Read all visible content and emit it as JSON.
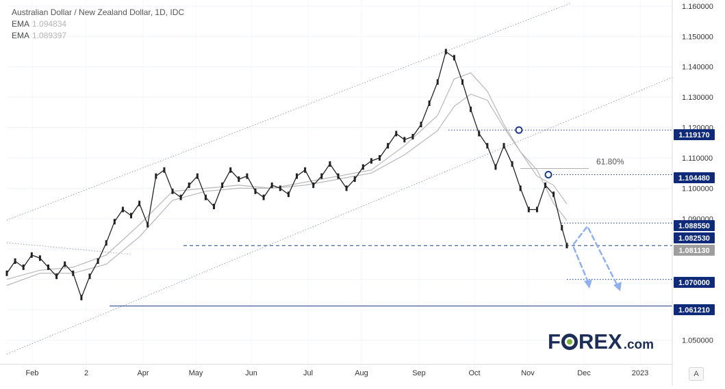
{
  "legend": {
    "title": "Australian Dollar / New Zealand Dollar, 1D, IDC",
    "ema1_label": "EMA",
    "ema1_value": "1.094834",
    "ema2_label": "EMA",
    "ema2_value": "1.089397"
  },
  "logo": {
    "text_left": "F",
    "text_right": "REX",
    "suffix": ".com"
  },
  "scale_button": "A",
  "colors": {
    "price_line": "#222222",
    "ema": "#b8b8b8",
    "channel": "#9aa0a8",
    "level_line": "#1c3a8a",
    "label_bg": "#0f2a78",
    "current_bg": "#9e9e9e",
    "projection": "#8fb0ec",
    "marker": "#1c3a8a"
  },
  "chart_data": {
    "type": "line",
    "title": "Australian Dollar / New Zealand Dollar, 1D, IDC",
    "x_axis": {
      "tick_labels": [
        "Feb",
        "2",
        "Apr",
        "May",
        "Jun",
        "Jul",
        "Aug",
        "Sep",
        "Oct",
        "Nov",
        "Dec",
        "2023"
      ]
    },
    "y_axis": {
      "ylim": [
        1.042,
        1.162
      ],
      "tick_values": [
        1.05,
        1.06,
        1.07,
        1.08,
        1.09,
        1.1,
        1.11,
        1.12,
        1.13,
        1.14,
        1.15,
        1.16
      ],
      "tick_labels": [
        "1.050000",
        "1.060000",
        "1.070000",
        "1.080000",
        "1.090000",
        "1.100000",
        "1.110000",
        "1.120000",
        "1.130000",
        "1.140000",
        "1.150000",
        "1.160000"
      ]
    },
    "grid": true,
    "series": [
      {
        "role": "price",
        "x": [
          0,
          5,
          10,
          15,
          20,
          25,
          30,
          35,
          40,
          45,
          50,
          55,
          60,
          65,
          70,
          75,
          80,
          85,
          90,
          95,
          100,
          105,
          110,
          115,
          120,
          125,
          130,
          135,
          140,
          145,
          150,
          155,
          160,
          165,
          170,
          175,
          180,
          185,
          190,
          195,
          200,
          205,
          210,
          215,
          220,
          225,
          230,
          235,
          240,
          245,
          250,
          255,
          260,
          265,
          270,
          275,
          280,
          285,
          290,
          295,
          300,
          305,
          310,
          315,
          320,
          325,
          330,
          335,
          338
        ],
        "y": [
          1.072,
          1.076,
          1.074,
          1.078,
          1.077,
          1.074,
          1.071,
          1.075,
          1.072,
          1.064,
          1.071,
          1.076,
          1.082,
          1.089,
          1.093,
          1.091,
          1.095,
          1.088,
          1.104,
          1.106,
          1.099,
          1.097,
          1.101,
          1.104,
          1.097,
          1.094,
          1.101,
          1.106,
          1.103,
          1.104,
          1.099,
          1.097,
          1.101,
          1.1,
          1.098,
          1.104,
          1.106,
          1.101,
          1.104,
          1.108,
          1.104,
          1.1,
          1.103,
          1.107,
          1.109,
          1.11,
          1.114,
          1.118,
          1.116,
          1.117,
          1.121,
          1.128,
          1.135,
          1.145,
          1.143,
          1.135,
          1.126,
          1.118,
          1.114,
          1.107,
          1.114,
          1.108,
          1.1,
          1.093,
          1.093,
          1.101,
          1.098,
          1.087,
          1.08113
        ]
      },
      {
        "role": "ema",
        "name": "EMA",
        "x": [
          0,
          20,
          40,
          60,
          80,
          100,
          120,
          140,
          160,
          180,
          200,
          220,
          240,
          260,
          270,
          280,
          290,
          300,
          310,
          320,
          330,
          338
        ],
        "y": [
          1.07,
          1.073,
          1.074,
          1.078,
          1.088,
          1.099,
          1.1,
          1.101,
          1.1,
          1.102,
          1.104,
          1.106,
          1.114,
          1.124,
          1.136,
          1.138,
          1.132,
          1.121,
          1.112,
          1.104,
          1.101,
          1.094834
        ]
      },
      {
        "role": "ema",
        "name": "EMA",
        "x": [
          0,
          20,
          40,
          60,
          80,
          100,
          120,
          140,
          160,
          180,
          200,
          220,
          240,
          260,
          270,
          280,
          290,
          300,
          310,
          320,
          330,
          338
        ],
        "y": [
          1.068,
          1.072,
          1.072,
          1.075,
          1.084,
          1.096,
          1.099,
          1.1,
          1.1,
          1.101,
          1.103,
          1.105,
          1.111,
          1.119,
          1.127,
          1.131,
          1.129,
          1.12,
          1.112,
          1.106,
          1.095,
          1.089397
        ]
      }
    ],
    "price_levels": [
      {
        "value": 1.11917,
        "label": "1.119170"
      },
      {
        "value": 1.10448,
        "label": "1.104480"
      },
      {
        "value": 1.08855,
        "label": "1.088550"
      },
      {
        "value": 1.08253,
        "label": "1.082530"
      },
      {
        "value": 1.08113,
        "label": "1.081130",
        "current": true
      },
      {
        "value": 1.07,
        "label": "1.070000"
      },
      {
        "value": 1.06121,
        "label": "1.061210"
      }
    ],
    "annotations": {
      "fib_label": "61.80%",
      "fib_level": 1.1065
    }
  }
}
